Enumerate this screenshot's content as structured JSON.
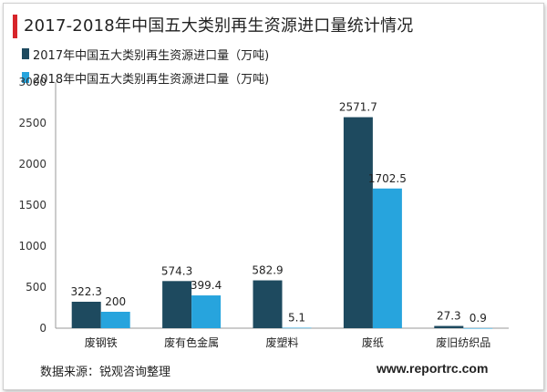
{
  "title": "2017-2018年中国五大类别再生资源进口量统计情况",
  "footer": {
    "source": "数据来源：锐观咨询整理",
    "site": "www.reportrc.com"
  },
  "colors": {
    "accent_bar": "#d7252b",
    "series_2017": "#1e4a5f",
    "series_2018": "#27a4dd"
  },
  "chart_data": {
    "type": "bar",
    "categories": [
      "废钢铁",
      "废有色金属",
      "废塑料",
      "废纸",
      "废旧纺织品"
    ],
    "series": [
      {
        "name": "2017年中国五大类别再生资源进口量（万吨)",
        "values": [
          322.3,
          574.3,
          582.9,
          2571.7,
          27.3
        ],
        "labels": [
          "322.3",
          "574.3",
          "582.9",
          "2571.7",
          "27.3"
        ]
      },
      {
        "name": "2018年中国五大类别再生资源进口量（万吨)",
        "values": [
          200,
          399.4,
          5.1,
          1702.5,
          0.9
        ],
        "labels": [
          "200",
          "399.4",
          "5.1",
          "1702.5",
          "0.9"
        ]
      }
    ],
    "ylim": [
      0,
      3000
    ],
    "yticks": [
      "0",
      "500",
      "1000",
      "1500",
      "2000",
      "2500",
      "3000"
    ],
    "grid": false,
    "legend": "top-left"
  }
}
